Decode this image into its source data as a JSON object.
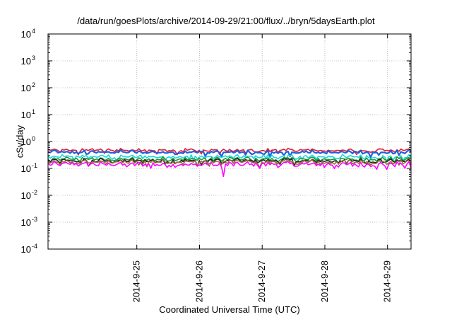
{
  "chart_data": {
    "type": "line",
    "title": "/data/run/goesPlots/archive/2014-09-29/21:00/flux/../bryn/5daysEarth.plot",
    "xlabel": "Coordinated Universal Time (UTC)",
    "ylabel": "cSv/day",
    "xlim": [
      "2014-09-24 02:00",
      "2014-09-29 21:00"
    ],
    "x_ticks": [
      "2014-9-25",
      "2014-9-26",
      "2014-9-27",
      "2014-9-28",
      "2014-9-29"
    ],
    "y_scale": "log",
    "ylim": [
      0.0001,
      10000
    ],
    "y_ticks": [
      {
        "base": "10",
        "exp": "-4"
      },
      {
        "base": "10",
        "exp": "-3"
      },
      {
        "base": "10",
        "exp": "-2"
      },
      {
        "base": "10",
        "exp": "-1"
      },
      {
        "base": "10",
        "exp": "0"
      },
      {
        "base": "10",
        "exp": "1"
      },
      {
        "base": "10",
        "exp": "2"
      },
      {
        "base": "10",
        "exp": "3"
      },
      {
        "base": "10",
        "exp": "4"
      }
    ],
    "grid": true,
    "series_approx_levels": [
      {
        "color": "#e8192c",
        "level": 0.47
      },
      {
        "color": "#1f5fe0",
        "level": 0.4
      },
      {
        "color": "#17d7e0",
        "level": 0.27
      },
      {
        "color": "#1a9a2a",
        "level": 0.22
      },
      {
        "color": "#222222",
        "level": 0.19
      },
      {
        "color": "#9a6a3a",
        "level": 0.17
      },
      {
        "color": "#ff00ff",
        "level": 0.14
      }
    ]
  }
}
